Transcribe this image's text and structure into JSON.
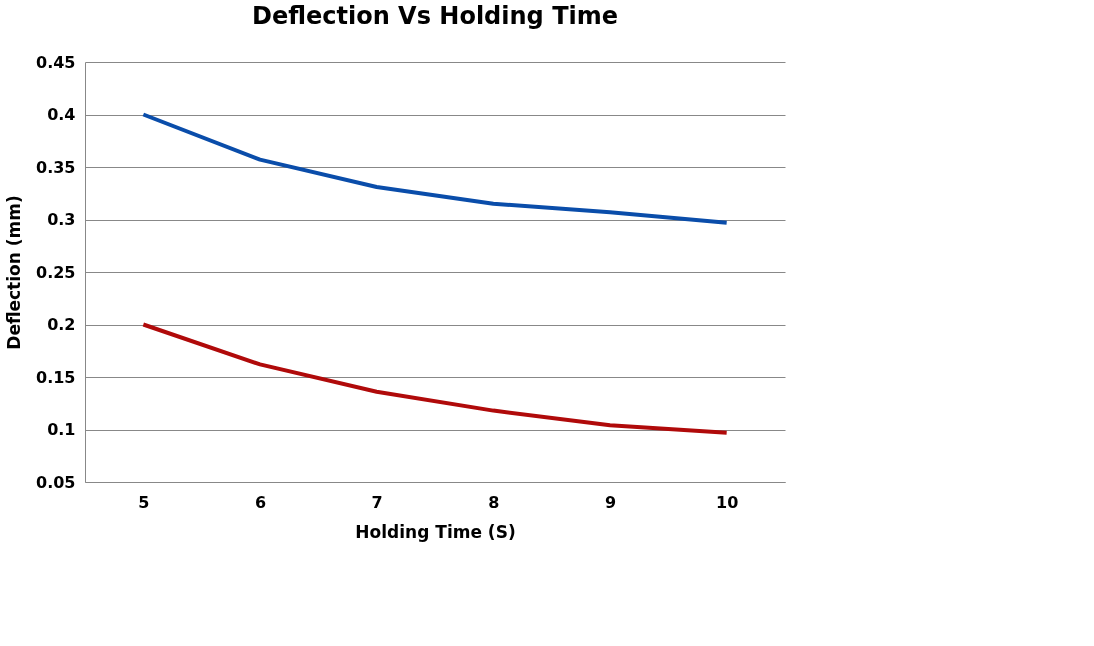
{
  "chart_data": {
    "type": "line",
    "title": "Deflection Vs Holding Time",
    "xlabel": "Holding Time (S)",
    "ylabel": "Deflection (mm)",
    "categories": [
      "5",
      "6",
      "7",
      "8",
      "9",
      "10"
    ],
    "series": [
      {
        "color": "#0a4daa",
        "values": [
          0.4,
          0.357,
          0.331,
          0.315,
          0.307,
          0.297
        ]
      },
      {
        "color": "#b00a0a",
        "values": [
          0.2,
          0.162,
          0.136,
          0.118,
          0.104,
          0.097
        ]
      }
    ],
    "ylim": [
      0.05,
      0.45
    ],
    "yticks": [
      0.05,
      0.1,
      0.15,
      0.2,
      0.25,
      0.3,
      0.35,
      0.4,
      0.45
    ],
    "grid": "y",
    "legend": false,
    "marker": "none",
    "line_style": "solid"
  }
}
